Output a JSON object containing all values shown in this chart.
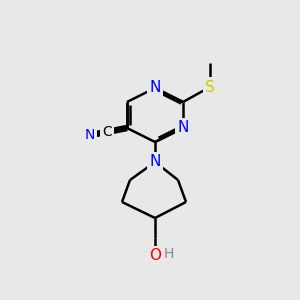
{
  "background_color": "#e8e8e8",
  "bond_color": "#000000",
  "atom_colors": {
    "N": "#0000ff",
    "O": "#ff0000",
    "S": "#cccc00",
    "C": "#000000",
    "H": "#808080"
  },
  "bond_width": 1.8,
  "figsize": [
    3.0,
    3.0
  ],
  "dpi": 100
}
